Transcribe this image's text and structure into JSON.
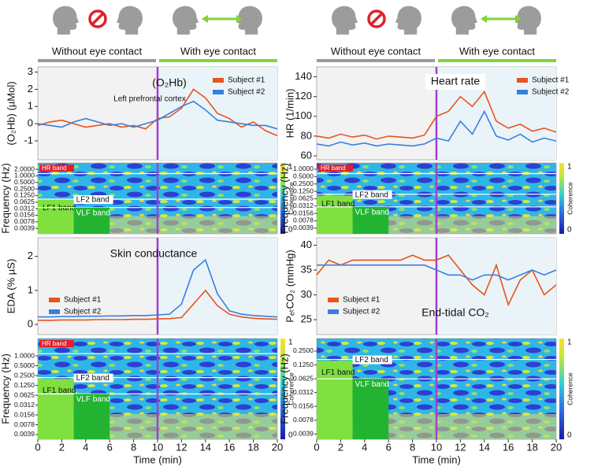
{
  "conditions": [
    {
      "label": "Without eye contact",
      "color": "#9a9a9a"
    },
    {
      "label": "With eye contact",
      "color": "#7fd43c"
    }
  ],
  "chart_data": [
    {
      "type": "line",
      "title": "(O₂Hb)",
      "subtitle": "Left prefrontal cortex",
      "y_label": "(O₂Hb) (µMol)",
      "x": [
        0,
        1,
        2,
        3,
        4,
        5,
        6,
        7,
        8,
        9,
        10,
        11,
        12,
        13,
        14,
        15,
        16,
        17,
        18,
        19,
        20
      ],
      "xlim": [
        0,
        20
      ],
      "ylim": [
        -2.1,
        3.3
      ],
      "yticks": [
        -1,
        0,
        1,
        2,
        3
      ],
      "legend": "upper right",
      "marker_x": 10,
      "marker_color": "#a23ed1",
      "series": [
        {
          "name": "Subject #1",
          "color": "#e8541e",
          "values": [
            -0.1,
            0.1,
            0.2,
            0,
            -0.2,
            -0.1,
            0.0,
            -0.2,
            -0.1,
            -0.3,
            0.3,
            0.4,
            0.9,
            2.0,
            1.5,
            0.6,
            0.3,
            -0.2,
            0.1,
            -0.4,
            -0.7
          ]
        },
        {
          "name": "Subject #2",
          "color": "#3a7fe0",
          "values": [
            0,
            -0.1,
            -0.2,
            0.1,
            0.3,
            0.1,
            -0.1,
            0.0,
            -0.2,
            0,
            0.2,
            0.6,
            1.0,
            1.3,
            0.8,
            0.2,
            0.1,
            0,
            -0.1,
            -0.1,
            -0.3
          ]
        }
      ]
    },
    {
      "type": "line",
      "title": "Heart rate",
      "y_label": "HR (1/min)",
      "x": [
        0,
        1,
        2,
        3,
        4,
        5,
        6,
        7,
        8,
        9,
        10,
        11,
        12,
        13,
        14,
        15,
        16,
        17,
        18,
        19,
        20
      ],
      "xlim": [
        0,
        20
      ],
      "ylim": [
        56,
        150
      ],
      "yticks": [
        60,
        80,
        100,
        120,
        140
      ],
      "legend": "upper right",
      "marker_x": 10,
      "marker_color": "#a23ed1",
      "series": [
        {
          "name": "Subject #1",
          "color": "#e8541e",
          "values": [
            80,
            78,
            82,
            79,
            81,
            77,
            80,
            79,
            78,
            81,
            100,
            105,
            120,
            110,
            125,
            95,
            88,
            92,
            85,
            88,
            84
          ]
        },
        {
          "name": "Subject #2",
          "color": "#3a7fe0",
          "values": [
            72,
            70,
            74,
            71,
            73,
            70,
            72,
            71,
            70,
            72,
            78,
            75,
            95,
            82,
            105,
            80,
            76,
            82,
            74,
            78,
            75
          ]
        }
      ]
    },
    {
      "type": "heatmap",
      "y_label": "Frequency (Hz)",
      "xlim": [
        0,
        20
      ],
      "ylim": [
        0.0022,
        3.9
      ],
      "log_y": true,
      "marker_x": 10,
      "marker_color": "#a23ed1",
      "yticks": [
        {
          "value": 2,
          "label": "2.0000"
        },
        {
          "value": 1,
          "label": "1.0000"
        },
        {
          "value": 0.5,
          "label": "0.5000"
        },
        {
          "value": 0.25,
          "label": "0.2500"
        },
        {
          "value": 0.125,
          "label": "0.1250"
        },
        {
          "value": 0.0625,
          "label": "0.0625"
        },
        {
          "value": 0.03125,
          "label": "0.0312"
        },
        {
          "value": 0.015625,
          "label": "0.0156"
        },
        {
          "value": 0.0078125,
          "label": "0.0078"
        },
        {
          "value": 0.00390625,
          "label": "0.0039"
        }
      ],
      "colorbar_label": "Coherence",
      "colorbar_ticks": [
        0,
        1
      ],
      "bands": [
        "HR band",
        "LF2 band",
        "LF1 band",
        "VLF band"
      ]
    },
    {
      "type": "heatmap",
      "y_label": "Frequency (Hz)",
      "xlim": [
        0,
        20
      ],
      "ylim": [
        0.0023,
        1.8
      ],
      "log_y": true,
      "marker_x": 10,
      "marker_color": "#a23ed1",
      "yticks": [
        {
          "value": 1,
          "label": "1.0000"
        },
        {
          "value": 0.5,
          "label": "0.5000"
        },
        {
          "value": 0.25,
          "label": "0.2500"
        },
        {
          "value": 0.125,
          "label": "0.1250"
        },
        {
          "value": 0.0625,
          "label": "0.0625"
        },
        {
          "value": 0.03125,
          "label": "0.0312"
        },
        {
          "value": 0.015625,
          "label": "0.0156"
        },
        {
          "value": 0.0078125,
          "label": "0.0078"
        },
        {
          "value": 0.00390625,
          "label": "0.0039"
        }
      ],
      "colorbar_label": "Coherence",
      "colorbar_ticks": [
        0,
        1
      ],
      "bands": [
        "HR band",
        "LF2 band",
        "LF1 band",
        "VLF band"
      ]
    },
    {
      "type": "line",
      "title": "Skin conductance",
      "y_label": "EDA (% µS)",
      "x": [
        0,
        1,
        2,
        3,
        4,
        5,
        6,
        7,
        8,
        9,
        10,
        11,
        12,
        13,
        14,
        15,
        16,
        17,
        18,
        19,
        20
      ],
      "xlim": [
        0,
        20
      ],
      "ylim": [
        -0.3,
        2.55
      ],
      "yticks": [
        0,
        1,
        2
      ],
      "legend": "center left",
      "marker_x": 10,
      "marker_color": "#a23ed1",
      "series": [
        {
          "name": "Subject #1",
          "color": "#e8541e",
          "values": [
            0.12,
            0.12,
            0.13,
            0.13,
            0.13,
            0.14,
            0.14,
            0.14,
            0.15,
            0.15,
            0.16,
            0.17,
            0.2,
            0.6,
            1.0,
            0.55,
            0.3,
            0.22,
            0.18,
            0.16,
            0.15
          ]
        },
        {
          "name": "Subject #2",
          "color": "#3a7fe0",
          "values": [
            0.22,
            0.22,
            0.23,
            0.23,
            0.24,
            0.24,
            0.25,
            0.25,
            0.26,
            0.26,
            0.28,
            0.3,
            0.6,
            1.6,
            1.9,
            0.9,
            0.4,
            0.3,
            0.26,
            0.24,
            0.22
          ]
        }
      ]
    },
    {
      "type": "line",
      "title": "End-tidal CO₂",
      "y_label": "PₑₜCO₂ (mmHg)",
      "x": [
        0,
        1,
        2,
        3,
        4,
        5,
        6,
        7,
        8,
        9,
        10,
        11,
        12,
        13,
        14,
        15,
        16,
        17,
        18,
        19,
        20
      ],
      "xlim": [
        0,
        20
      ],
      "ylim": [
        22,
        41.5
      ],
      "yticks": [
        25,
        30,
        35,
        40
      ],
      "legend": "lower left",
      "marker_x": 10,
      "marker_color": "#a23ed1",
      "series": [
        {
          "name": "Subject #1",
          "color": "#e8541e",
          "values": [
            34,
            37,
            36,
            37,
            37,
            37,
            37,
            37,
            38,
            37,
            37,
            38,
            35,
            32,
            30,
            36,
            28,
            33,
            35,
            30,
            32
          ]
        },
        {
          "name": "Subject #2",
          "color": "#3a7fe0",
          "values": [
            36,
            36,
            36,
            36,
            36,
            36,
            36,
            36,
            36,
            36,
            35,
            34,
            34,
            33,
            34,
            34,
            33,
            34,
            35,
            34,
            35
          ]
        }
      ]
    },
    {
      "type": "heatmap",
      "y_label": "Frequency (Hz)",
      "x_label": "Time (min)",
      "xlim": [
        0,
        20
      ],
      "xticks": [
        0,
        2,
        4,
        6,
        8,
        10,
        12,
        14,
        16,
        18,
        20
      ],
      "ylim": [
        0.0028,
        3.4
      ],
      "log_y": true,
      "marker_x": 10,
      "marker_color": "#a23ed1",
      "yticks": [
        {
          "value": 1,
          "label": "1.0000"
        },
        {
          "value": 0.5,
          "label": "0.5000"
        },
        {
          "value": 0.25,
          "label": "0.2500"
        },
        {
          "value": 0.125,
          "label": "0.1250"
        },
        {
          "value": 0.0625,
          "label": "0.0625"
        },
        {
          "value": 0.03125,
          "label": "0.0312"
        },
        {
          "value": 0.015625,
          "label": "0.0156"
        },
        {
          "value": 0.0078125,
          "label": "0.0078"
        },
        {
          "value": 0.00390625,
          "label": "0.0039"
        }
      ],
      "colorbar_label": "Coherence",
      "colorbar_ticks": [
        0,
        1
      ],
      "bands": [
        "HR band",
        "LF2 band",
        "LF1 band",
        "VLF band"
      ]
    },
    {
      "type": "heatmap",
      "y_label": "Frequency (Hz)",
      "x_label": "Time (min)",
      "xlim": [
        0,
        20
      ],
      "xticks": [
        0,
        2,
        4,
        6,
        8,
        10,
        12,
        14,
        16,
        18,
        20
      ],
      "ylim": [
        0.003,
        0.47
      ],
      "log_y": true,
      "marker_x": 10,
      "marker_color": "#a23ed1",
      "yticks": [
        {
          "value": 0.25,
          "label": "0.2500"
        },
        {
          "value": 0.125,
          "label": "0.1250"
        },
        {
          "value": 0.0625,
          "label": "0.0625"
        },
        {
          "value": 0.03125,
          "label": "0.0312"
        },
        {
          "value": 0.015625,
          "label": "0.0156"
        },
        {
          "value": 0.0078125,
          "label": "0.0078"
        },
        {
          "value": 0.00390625,
          "label": "0.0039"
        }
      ],
      "colorbar_label": "Coherence",
      "colorbar_ticks": [
        0,
        1
      ],
      "bands": [
        "LF2 band",
        "LF1 band",
        "VLF band"
      ]
    }
  ]
}
